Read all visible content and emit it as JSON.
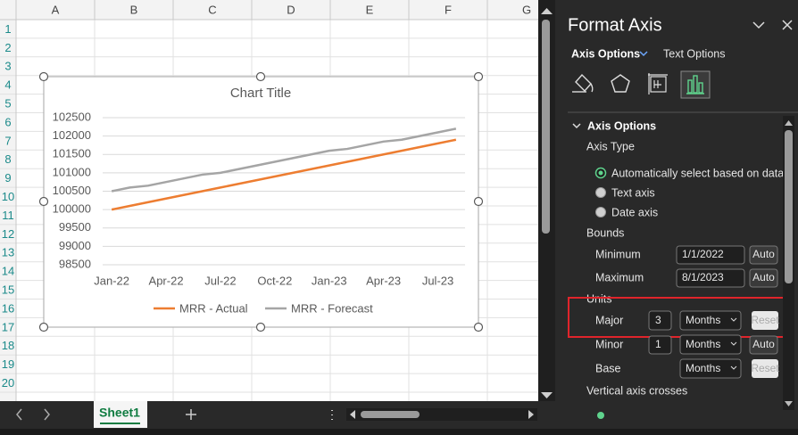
{
  "spreadsheet": {
    "columns": [
      "A",
      "B",
      "C",
      "D",
      "E",
      "F",
      "G"
    ],
    "rows": [
      "1",
      "2",
      "3",
      "4",
      "5",
      "6",
      "7",
      "8",
      "9",
      "10",
      "11",
      "12",
      "13",
      "14",
      "15",
      "16",
      "17",
      "18",
      "19",
      "20"
    ],
    "sheet_tab": "Sheet1"
  },
  "chart": {
    "type": "line",
    "title": "Chart Title",
    "categories": [
      "Jan-22",
      null,
      null,
      "Apr-22",
      null,
      null,
      "Jul-22",
      null,
      null,
      "Oct-22",
      null,
      null,
      "Jan-23",
      null,
      null,
      "Apr-23",
      null,
      null,
      "Jul-23",
      null
    ],
    "series": [
      {
        "name": "MRR - Actual",
        "color": "#ed7d31",
        "values": [
          100000,
          100100,
          100200,
          100300,
          100400,
          100500,
          100600,
          100700,
          100800,
          100900,
          101000,
          101100,
          101200,
          101300,
          101400,
          101500,
          101600,
          101700,
          101800,
          101900
        ]
      },
      {
        "name": "MRR - Forecast",
        "color": "#a5a5a5",
        "values": [
          100500,
          100600,
          100650,
          100750,
          100850,
          100950,
          101000,
          101100,
          101200,
          101300,
          101400,
          101500,
          101600,
          101650,
          101750,
          101850,
          101900,
          102000,
          102100,
          102200
        ]
      }
    ],
    "ylim": [
      98500,
      102500
    ],
    "yticks": [
      98500,
      99000,
      99500,
      100000,
      100500,
      101000,
      101500,
      102000,
      102500
    ],
    "grid": true,
    "legend": "bottom"
  },
  "format_pane": {
    "title": "Format Axis",
    "tabs": [
      "Axis Options",
      "Text Options"
    ],
    "section": "Axis Options",
    "axis_type": {
      "label": "Axis Type",
      "options": [
        "Automatically select based on data",
        "Text axis",
        "Date axis"
      ]
    },
    "bounds": {
      "label": "Bounds",
      "minimum": {
        "label": "Minimum",
        "value": "1/1/2022",
        "button": "Auto"
      },
      "maximum": {
        "label": "Maximum",
        "value": "8/1/2023",
        "button": "Auto"
      }
    },
    "units": {
      "label": "Units",
      "major": {
        "label": "Major",
        "value": "3",
        "unit": "Months",
        "button": "Reset"
      },
      "minor": {
        "label": "Minor",
        "value": "1",
        "unit": "Months",
        "button": "Auto"
      },
      "base": {
        "label": "Base",
        "unit": "Months",
        "button": "Reset"
      }
    },
    "vertical_axis_crosses": "Vertical axis crosses"
  }
}
